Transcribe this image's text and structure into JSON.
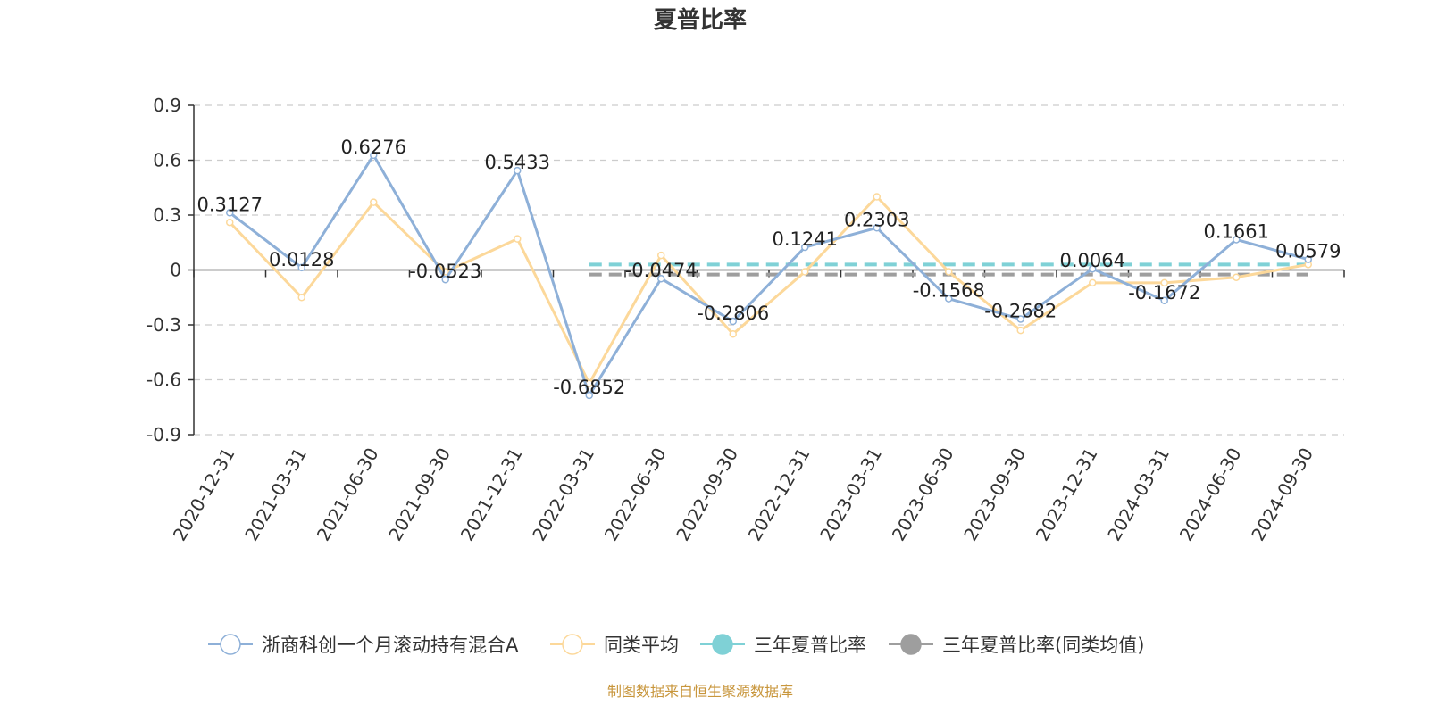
{
  "chart_data": {
    "type": "line",
    "title": "夏普比率",
    "source_note": "制图数据来自恒生聚源数据库",
    "categories": [
      "2020-12-31",
      "2021-03-31",
      "2021-06-30",
      "2021-09-30",
      "2021-12-31",
      "2022-03-31",
      "2022-06-30",
      "2022-09-30",
      "2022-12-31",
      "2023-03-31",
      "2023-06-30",
      "2023-09-30",
      "2023-12-31",
      "2024-03-31",
      "2024-06-30",
      "2024-09-30"
    ],
    "yticks": [
      "0.9",
      "0.6",
      "0.3",
      "0",
      "-0.3",
      "-0.6",
      "-0.9"
    ],
    "ylim": [
      -0.9,
      0.9
    ],
    "grid": true,
    "legend_position": "bottom",
    "series": [
      {
        "name": "浙商科创一个月滚动持有混合A",
        "color": "#8eb0d8",
        "values": [
          0.3127,
          0.0128,
          0.6276,
          -0.0523,
          0.5433,
          -0.6852,
          -0.0474,
          -0.2806,
          0.1241,
          0.2303,
          -0.1568,
          -0.2682,
          0.0064,
          -0.1672,
          0.1661,
          0.0579
        ],
        "labels": [
          "0.3127",
          "0.0128",
          "0.6276",
          "-0.0523",
          "0.5433",
          "-0.6852",
          "-0.0474",
          "-0.2806",
          "0.1241",
          "0.2303",
          "-0.1568",
          "-0.2682",
          "0.0064",
          "-0.1672",
          "0.1661",
          "0.0579"
        ]
      },
      {
        "name": "同类平均",
        "color": "#fcd89a",
        "values": [
          0.26,
          -0.15,
          0.37,
          -0.01,
          0.17,
          -0.62,
          0.08,
          -0.35,
          -0.01,
          0.4,
          -0.01,
          -0.33,
          -0.07,
          -0.07,
          -0.04,
          0.03
        ]
      },
      {
        "name": "三年夏普比率",
        "color": "#7fd1d6",
        "dashed_value": 0.03,
        "from_index": 5
      },
      {
        "name": "三年夏普比率(同类均值)",
        "color": "#9e9e9e",
        "dashed_value": -0.025,
        "from_index": 5
      }
    ]
  }
}
